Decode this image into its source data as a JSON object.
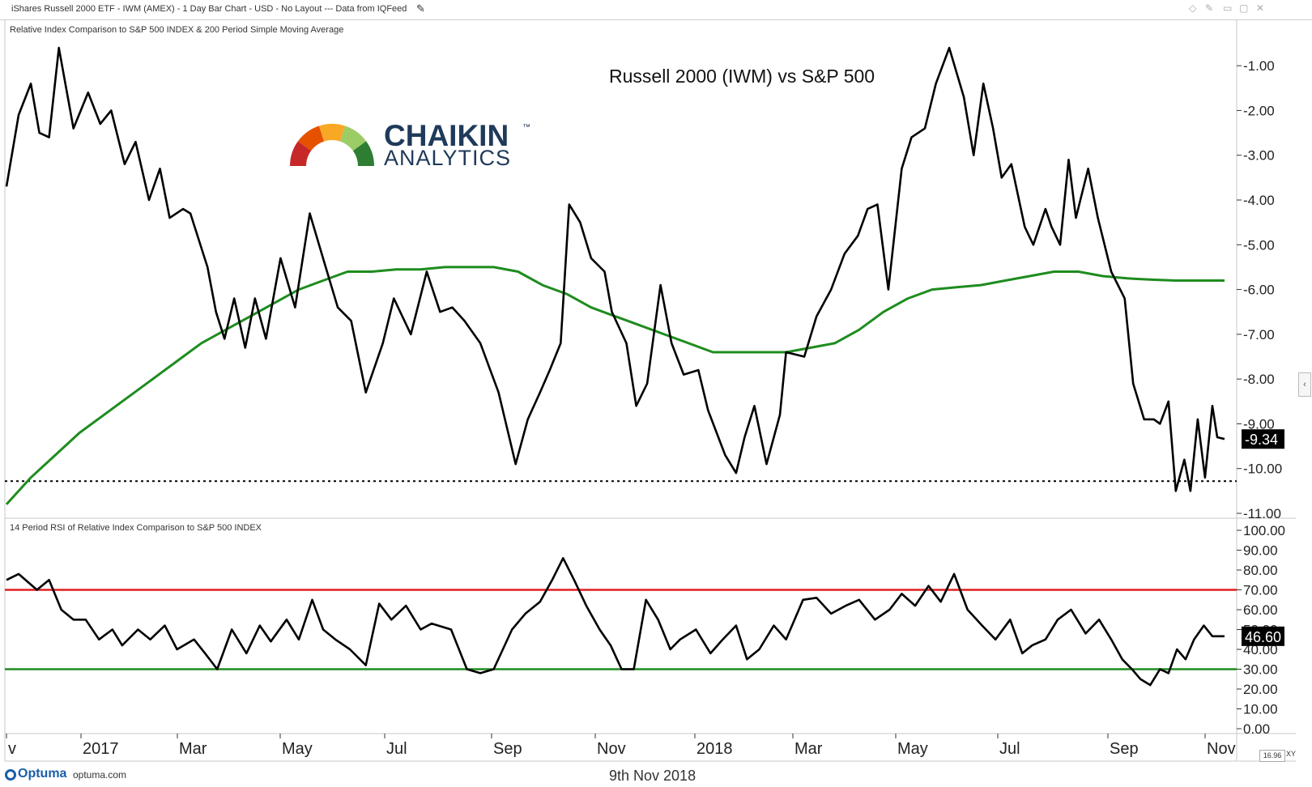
{
  "window": {
    "title": "iShares Russell 2000 ETF - IWM (AMEX) - 1 Day Bar Chart - USD - No Layout --- Data from IQFeed",
    "edit_icon": "pencil-icon",
    "controls": [
      "◇",
      "✎",
      "▭",
      "▢",
      "✕"
    ]
  },
  "footer": {
    "brand": "Optuma",
    "site": "optuma.com",
    "date": "9th Nov 2018",
    "zoom": "16.96",
    "xy": "XY"
  },
  "logo": {
    "line1": "CHAIKIN",
    "tm": "™",
    "line2": "ANALYTICS",
    "colors": [
      "#c62828",
      "#e65100",
      "#f9a825",
      "#9ccc65",
      "#2e7d32"
    ]
  },
  "chart_data": [
    {
      "type": "line",
      "title": "Russell 2000 (IWM) vs S&P 500",
      "subtitle": "Relative Index Comparison to S&P 500 INDEX & 200 Period Simple Moving Average",
      "x_tick_labels": [
        "v",
        "2017",
        "Mar",
        "May",
        "Jul",
        "Sep",
        "Nov",
        "2018",
        "Mar",
        "May",
        "Jul",
        "Sep",
        "Nov"
      ],
      "y_tick_labels": [
        "-1.00",
        "-2.00",
        "-3.00",
        "-4.00",
        "-5.00",
        "-6.00",
        "-7.00",
        "-8.00",
        "-9.00",
        "-10.00",
        "-11.00"
      ],
      "ylim": [
        -11.0,
        -0.4
      ],
      "xlim": [
        0,
        100
      ],
      "last_value_label": "-9.34",
      "horizontal_line": {
        "y": -10.28,
        "style": "dotted",
        "color": "#000000"
      },
      "series": [
        {
          "color": "#000000",
          "x": [
            0,
            1,
            2,
            2.7,
            3.5,
            4.3,
            5.5,
            6.7,
            7.7,
            8.6,
            9.7,
            10.6,
            11.7,
            12.6,
            13.4,
            14.5,
            15.1,
            16.5,
            17.2,
            17.9,
            18.7,
            19.6,
            20.4,
            21.3,
            22.5,
            23.7,
            24.9,
            26.1,
            27.2,
            28.3,
            29.5,
            30.9,
            31.8,
            33.2,
            34.5,
            35.6,
            36.6,
            37.6,
            38.9,
            40.4,
            41.8,
            42.8,
            43.8,
            44.6,
            45.5,
            46.2,
            47.1,
            48.0,
            49.1,
            49.7,
            50.9,
            51.7,
            52.6,
            53.7,
            54.6,
            55.6,
            56.8,
            57.6,
            59.0,
            59.9,
            60.6,
            61.4,
            62.4,
            63.5,
            64.0,
            65.5,
            66.5,
            67.7,
            68.8,
            69.9,
            70.7,
            71.5,
            72.4,
            73.5,
            74.3,
            75.4,
            76.3,
            77.4,
            78.6,
            79.4,
            80.2,
            81.0,
            81.7,
            82.5,
            83.6,
            84.3,
            85.3,
            85.8,
            86.5,
            87.2,
            87.8,
            88.8,
            89.6,
            90.7,
            91.8,
            92.5,
            93.4,
            94.2,
            94.7,
            95.4,
            96.0,
            96.7,
            97.2,
            97.8,
            98.4,
            99.0,
            99.4,
            100
          ],
          "y": [
            -3.7,
            -2.1,
            -1.4,
            -2.5,
            -2.6,
            -0.6,
            -2.4,
            -1.6,
            -2.3,
            -2.0,
            -3.2,
            -2.7,
            -4.0,
            -3.3,
            -4.4,
            -4.2,
            -4.3,
            -5.5,
            -6.5,
            -7.1,
            -6.2,
            -7.3,
            -6.2,
            -7.1,
            -5.3,
            -6.4,
            -4.3,
            -5.4,
            -6.4,
            -6.7,
            -8.3,
            -7.2,
            -6.2,
            -7.0,
            -5.6,
            -6.5,
            -6.4,
            -6.7,
            -7.2,
            -8.3,
            -9.9,
            -8.9,
            -8.3,
            -7.8,
            -7.2,
            -4.1,
            -4.5,
            -5.3,
            -5.6,
            -6.5,
            -7.2,
            -8.6,
            -8.1,
            -5.9,
            -7.2,
            -7.9,
            -7.8,
            -8.7,
            -9.7,
            -10.1,
            -9.3,
            -8.6,
            -9.9,
            -8.8,
            -7.4,
            -7.5,
            -6.6,
            -6.0,
            -5.2,
            -4.8,
            -4.2,
            -4.1,
            -6.0,
            -3.3,
            -2.6,
            -2.4,
            -1.4,
            -0.6,
            -1.7,
            -3.0,
            -1.4,
            -2.4,
            -3.5,
            -3.2,
            -4.6,
            -5.0,
            -4.2,
            -4.6,
            -5.0,
            -3.1,
            -4.4,
            -3.3,
            -4.4,
            -5.6,
            -6.2,
            -8.1,
            -8.9,
            -8.9,
            -9.0,
            -8.5,
            -10.5,
            -9.8,
            -10.5,
            -8.9,
            -10.2,
            -8.6,
            -9.3,
            -9.34
          ]
        },
        {
          "name": "200 Period Simple Moving Average",
          "color": "#1e8c1e",
          "x": [
            0,
            2,
            4,
            6,
            8,
            10,
            12,
            14,
            16,
            18,
            20,
            22,
            24,
            26,
            28,
            30,
            32,
            34,
            36,
            38,
            40,
            42,
            44,
            46,
            48,
            50,
            52,
            54,
            56,
            58,
            60,
            62,
            64,
            66,
            68,
            70,
            72,
            74,
            76,
            78,
            80,
            82,
            84,
            86,
            88,
            90,
            92,
            94,
            96,
            98,
            100
          ],
          "y": [
            -10.8,
            -10.2,
            -9.7,
            -9.2,
            -8.8,
            -8.4,
            -8.0,
            -7.6,
            -7.2,
            -6.9,
            -6.6,
            -6.3,
            -6.0,
            -5.8,
            -5.6,
            -5.6,
            -5.55,
            -5.55,
            -5.5,
            -5.5,
            -5.5,
            -5.6,
            -5.9,
            -6.1,
            -6.4,
            -6.6,
            -6.8,
            -7.0,
            -7.2,
            -7.4,
            -7.4,
            -7.4,
            -7.4,
            -7.3,
            -7.2,
            -6.9,
            -6.5,
            -6.2,
            -6.0,
            -5.95,
            -5.9,
            -5.8,
            -5.7,
            -5.6,
            -5.6,
            -5.7,
            -5.75,
            -5.78,
            -5.8,
            -5.8,
            -5.8
          ]
        }
      ],
      "logo_position": "top-left",
      "legend": "none",
      "grid": false
    },
    {
      "type": "line",
      "subtitle": "14 Period RSI of Relative Index Comparison to S&P 500 INDEX",
      "y_tick_labels": [
        "100.00",
        "90.00",
        "80.00",
        "70.00",
        "60.00",
        "50.00",
        "40.00",
        "30.00",
        "20.00",
        "10.00",
        "0.00"
      ],
      "ylim": [
        0,
        100
      ],
      "xlim": [
        0,
        100
      ],
      "last_value_label": "46.60",
      "overbought_line": {
        "y": 70,
        "color": "#e02020"
      },
      "oversold_line": {
        "y": 30,
        "color": "#1e8c1e"
      },
      "series": [
        {
          "color": "#000000",
          "x": [
            0,
            1,
            2.5,
            3.5,
            4.5,
            5.5,
            6.5,
            7.6,
            8.7,
            9.5,
            10.8,
            11.8,
            13.0,
            14.0,
            15.4,
            16.3,
            17.3,
            18.5,
            19.7,
            20.8,
            21.7,
            23.0,
            24.0,
            25.1,
            26.0,
            27.0,
            28.2,
            29.5,
            30.6,
            31.6,
            32.8,
            34.0,
            34.9,
            36.5,
            37.8,
            38.9,
            40.0,
            41.5,
            42.6,
            43.8,
            44.8,
            45.7,
            46.6,
            47.6,
            48.7,
            49.6,
            50.5,
            51.5,
            52.5,
            53.5,
            54.5,
            55.3,
            56.6,
            57.8,
            58.8,
            59.9,
            60.8,
            61.8,
            63.0,
            64.0,
            65.4,
            66.5,
            67.7,
            68.9,
            70.0,
            71.3,
            72.5,
            73.5,
            74.6,
            75.7,
            76.7,
            77.8,
            78.9,
            80.1,
            81.2,
            82.4,
            83.4,
            84.2,
            85.3,
            86.3,
            87.4,
            88.6,
            89.7,
            90.7,
            91.6,
            92.4,
            93.1,
            93.9,
            94.7,
            95.4,
            96.1,
            96.8,
            97.5,
            98.3,
            99.0,
            100
          ],
          "y": [
            75,
            78,
            70,
            75,
            60,
            55,
            55,
            45,
            50,
            42,
            50,
            45,
            52,
            40,
            45,
            38,
            30,
            50,
            38,
            52,
            44,
            55,
            45,
            65,
            50,
            45,
            40,
            32,
            63,
            55,
            62,
            50,
            53,
            50,
            30,
            28,
            30,
            50,
            58,
            64,
            75,
            86,
            75,
            62,
            50,
            42,
            30,
            30,
            65,
            55,
            40,
            45,
            50,
            38,
            45,
            52,
            35,
            40,
            52,
            45,
            65,
            66,
            58,
            62,
            65,
            55,
            60,
            68,
            62,
            72,
            64,
            78,
            60,
            52,
            45,
            55,
            38,
            42,
            45,
            55,
            60,
            48,
            55,
            45,
            35,
            30,
            25,
            22,
            30,
            28,
            40,
            35,
            45,
            52,
            46.6,
            46.6
          ]
        }
      ]
    }
  ]
}
